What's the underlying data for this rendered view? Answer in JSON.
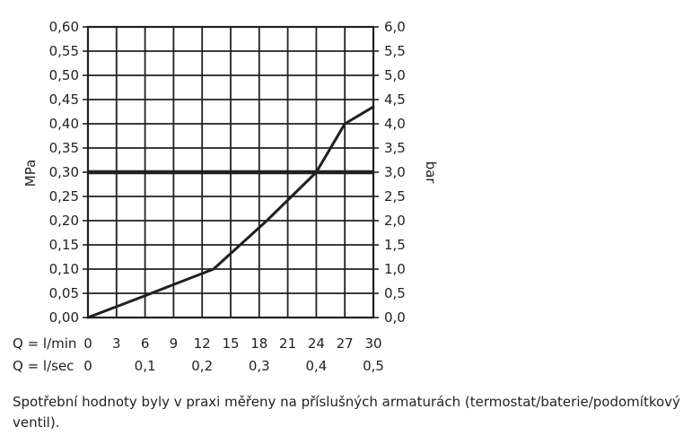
{
  "chart_data": {
    "type": "line",
    "x_label_lpm": "Q = l/min",
    "x_label_lps": "Q = l/sec",
    "ylabel_left": "MPa",
    "ylabel_right": "bar",
    "xlim": [
      0,
      30
    ],
    "ylim": [
      0,
      0.6
    ],
    "ylim_right": [
      0,
      6.0
    ],
    "grid": true,
    "x_ticks_lpm": [
      "0",
      "3",
      "6",
      "9",
      "12",
      "15",
      "18",
      "21",
      "24",
      "27",
      "30"
    ],
    "x_ticks_lps": [
      "0",
      "0,1",
      "0,2",
      "0,3",
      "0,4",
      "0,5"
    ],
    "y_ticks_left": [
      "0,00",
      "0,05",
      "0,10",
      "0,15",
      "0,20",
      "0,25",
      "0,30",
      "0,35",
      "0,40",
      "0,45",
      "0,50",
      "0,55",
      "0,60"
    ],
    "y_ticks_right": [
      "0,0",
      "0,5",
      "1,0",
      "1,5",
      "2,0",
      "2,5",
      "3,0",
      "3,5",
      "4,0",
      "4,5",
      "5,0",
      "5,5",
      "6,0"
    ],
    "series": [
      {
        "x": [
          0,
          6,
          9,
          13.2,
          18.8,
          24,
          27,
          30
        ],
        "y": [
          0,
          0.045,
          0.068,
          0.1,
          0.2,
          0.3,
          0.4,
          0.435
        ],
        "color": "#231f20"
      }
    ],
    "reference_line": {
      "y": 0.3,
      "color": "#231f20"
    }
  },
  "caption": "Spotřební hodnoty byly v praxi měřeny na příslušných armaturách (termostat/baterie/podomítkový ventil)."
}
